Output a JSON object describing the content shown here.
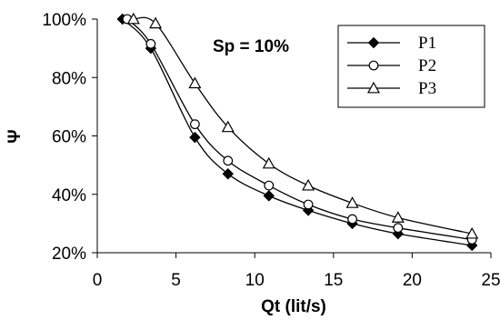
{
  "chart_data": {
    "type": "line",
    "title": "",
    "annotation": "Sp = 10%",
    "xlabel": "Qt (lit/s)",
    "ylabel": "Ψ",
    "xlim": [
      0,
      25
    ],
    "ylim": [
      20,
      100
    ],
    "x_ticks": [
      0,
      5,
      10,
      15,
      20,
      25
    ],
    "y_ticks": [
      20,
      40,
      60,
      80,
      100
    ],
    "x_tick_labels": [
      "0",
      "5",
      "10",
      "15",
      "20",
      "25"
    ],
    "y_tick_labels": [
      "20%",
      "40%",
      "60%",
      "80%",
      "100%"
    ],
    "grid": false,
    "legend_position": "top-right",
    "series": [
      {
        "name": "P1",
        "marker": "diamond",
        "color": "#000000",
        "x": [
          1.6,
          3.4,
          6.2,
          8.3,
          10.9,
          13.4,
          16.2,
          19.1,
          23.8
        ],
        "y": [
          100,
          90,
          59.5,
          47,
          39.5,
          34.5,
          30,
          26.5,
          22.5
        ]
      },
      {
        "name": "P2",
        "marker": "circle",
        "color": "#000000",
        "x": [
          1.9,
          3.4,
          6.2,
          8.3,
          10.9,
          13.4,
          16.2,
          19.1,
          23.8
        ],
        "y": [
          100,
          91.5,
          64,
          51.5,
          43,
          36.5,
          31.5,
          28.5,
          24.5
        ]
      },
      {
        "name": "P3",
        "marker": "triangle",
        "color": "#000000",
        "x": [
          2.3,
          3.7,
          6.2,
          8.3,
          10.9,
          13.4,
          16.2,
          19.1,
          23.8
        ],
        "y": [
          100,
          98.5,
          78,
          63,
          50.5,
          43,
          37,
          32,
          26.5
        ]
      }
    ]
  }
}
